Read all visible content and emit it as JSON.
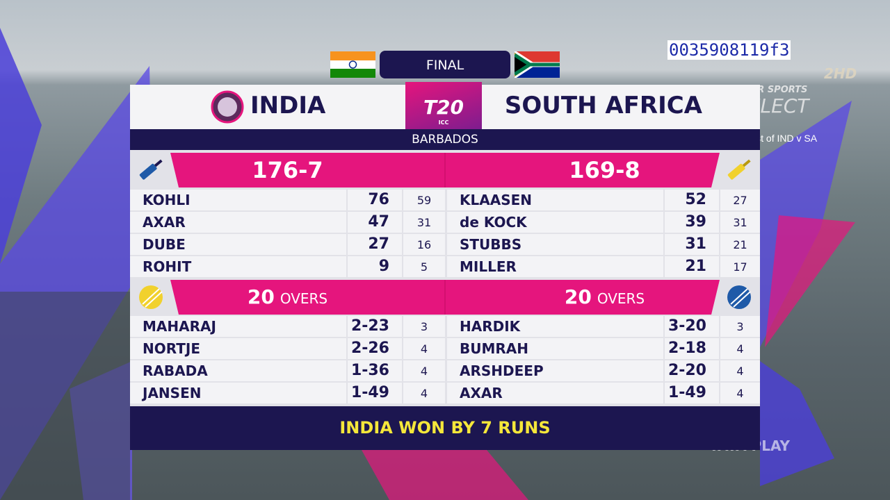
{
  "broadcast": {
    "watermark": "0035908119f3",
    "channel": "STAR SPORTS",
    "channel_sub": "SELECT",
    "channel_hd": "2HD",
    "promo": "Best of IND v SA",
    "sponsor": "TATA PLAY"
  },
  "header": {
    "stage": "FINAL",
    "venue": "BARBADOS",
    "logo": "T20",
    "logo_sub": "ICC",
    "teams": [
      "INDIA",
      "SOUTH AFRICA"
    ]
  },
  "innings": [
    {
      "score": "176-7",
      "batting": [
        {
          "name": "KOHLI",
          "runs": 76,
          "balls": 59
        },
        {
          "name": "AXAR",
          "runs": 47,
          "balls": 31
        },
        {
          "name": "DUBE",
          "runs": 27,
          "balls": 16
        },
        {
          "name": "ROHIT",
          "runs": 9,
          "balls": 5
        }
      ],
      "overs": 20,
      "overs_unit": "OVERS",
      "bowling": [
        {
          "name": "MAHARAJ",
          "figures": "2-23",
          "overs": 3
        },
        {
          "name": "NORTJE",
          "figures": "2-26",
          "overs": 4
        },
        {
          "name": "RABADA",
          "figures": "1-36",
          "overs": 4
        },
        {
          "name": "JANSEN",
          "figures": "1-49",
          "overs": 4
        }
      ]
    },
    {
      "score": "169-8",
      "batting": [
        {
          "name": "KLAASEN",
          "runs": 52,
          "balls": 27
        },
        {
          "name": "de KOCK",
          "runs": 39,
          "balls": 31
        },
        {
          "name": "STUBBS",
          "runs": 31,
          "balls": 21
        },
        {
          "name": "MILLER",
          "runs": 21,
          "balls": 17
        }
      ],
      "overs": 20,
      "overs_unit": "OVERS",
      "bowling": [
        {
          "name": "HARDIK",
          "figures": "3-20",
          "overs": 3
        },
        {
          "name": "BUMRAH",
          "figures": "2-18",
          "overs": 4
        },
        {
          "name": "ARSHDEEP",
          "figures": "2-20",
          "overs": 4
        },
        {
          "name": "AXAR",
          "figures": "1-49",
          "overs": 4
        }
      ]
    }
  ],
  "result": "INDIA WON BY 7 RUNS"
}
